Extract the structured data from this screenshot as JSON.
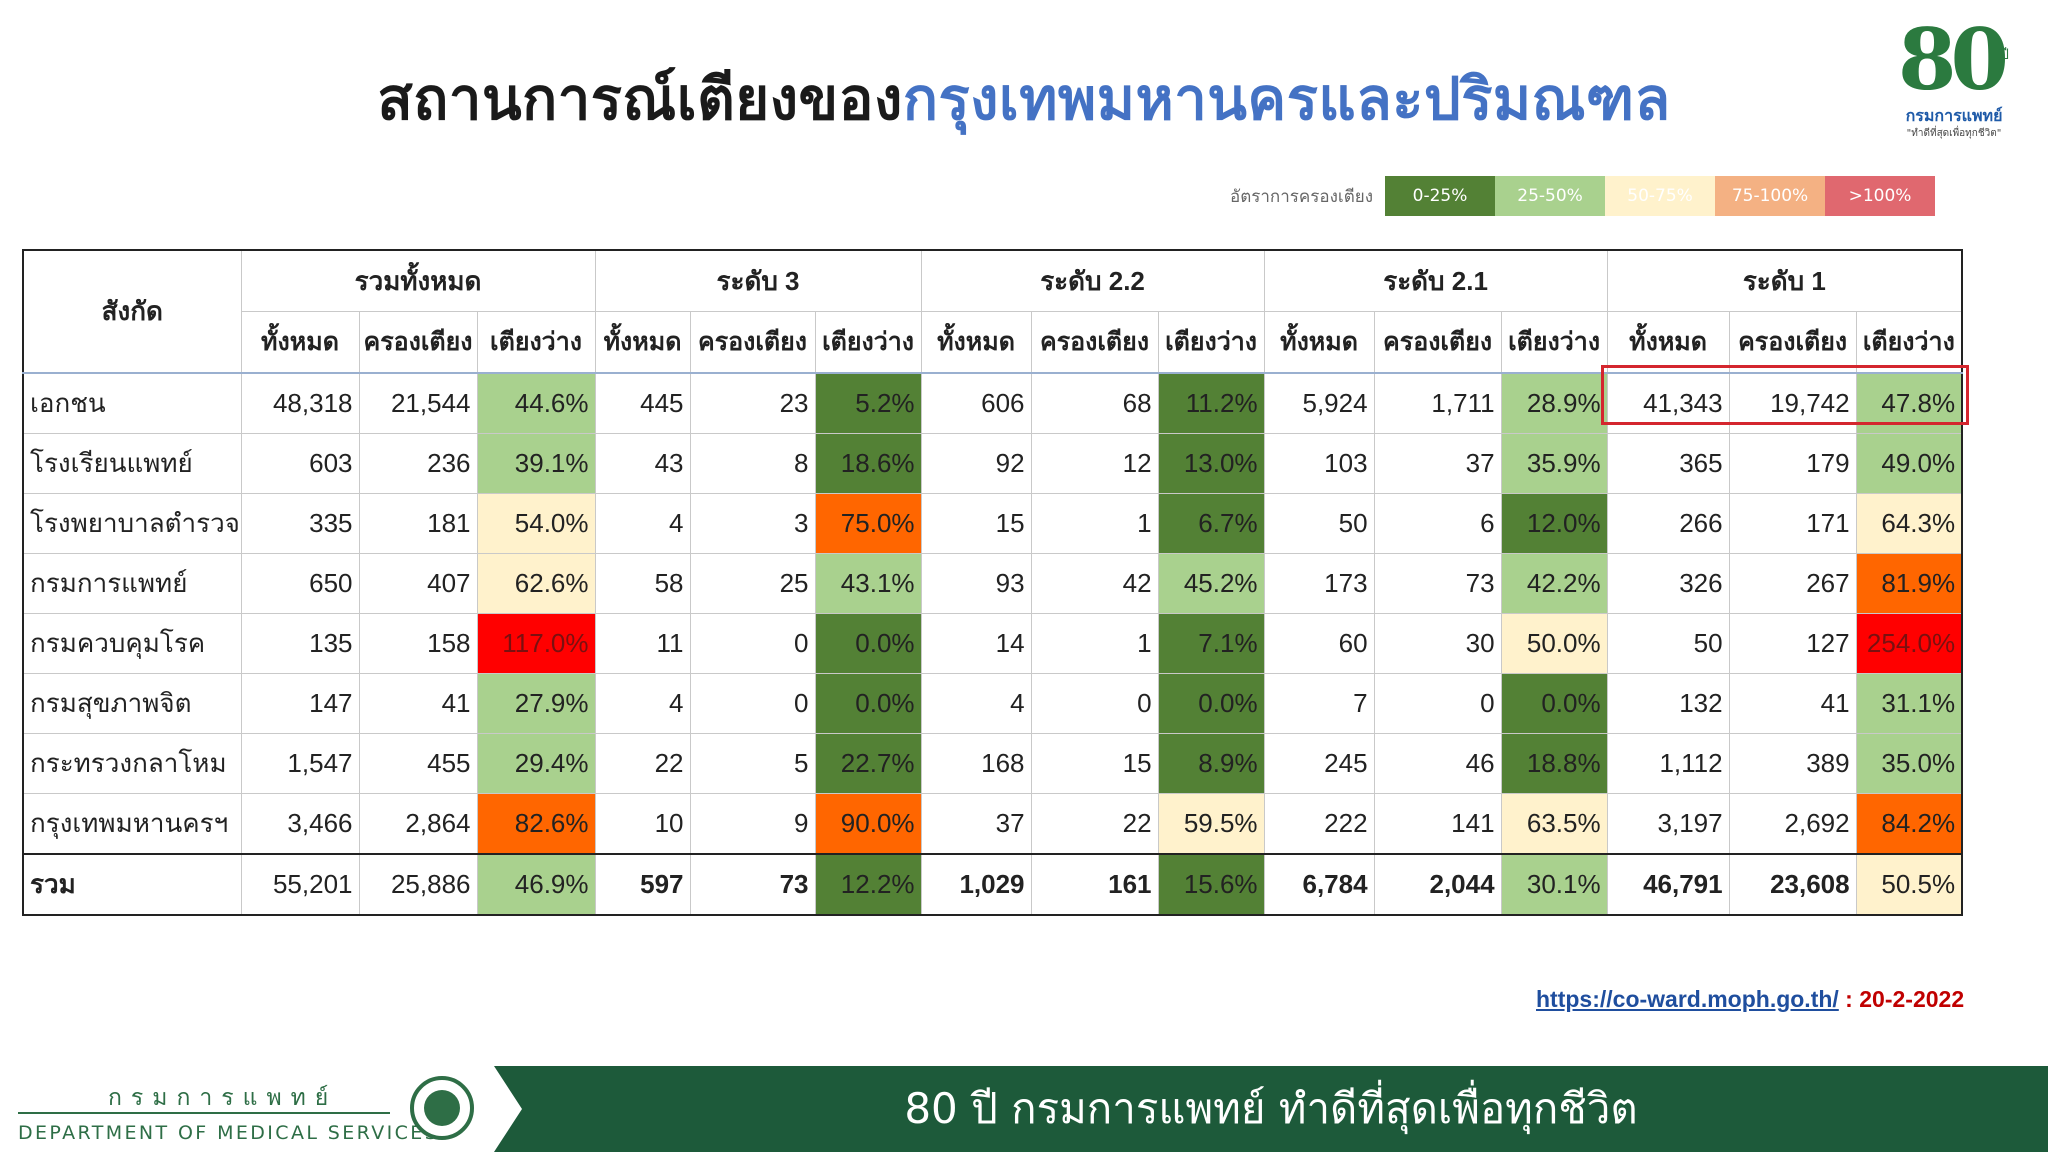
{
  "title": {
    "part1": "สถานการณ์เตียงของ",
    "part2": "กรุงเทพมหานครและปริมณฑล"
  },
  "logo": {
    "number": "80",
    "suffix": "ปี",
    "org": "กรมการแพทย์",
    "motto": "\"ทำดีที่สุดเพื่อทุกชีวิต\""
  },
  "legend": {
    "label": "อัตราการครองเตียง",
    "items": [
      {
        "text": "0-25%",
        "color": "#538135"
      },
      {
        "text": "25-50%",
        "color": "#a9d18e"
      },
      {
        "text": "50-75%",
        "color": "#fff2cc"
      },
      {
        "text": "75-100%",
        "color": "#f4b183"
      },
      {
        "text": ">100%",
        "color": "#e0686f"
      }
    ]
  },
  "table": {
    "corner": "สังกัด",
    "groups": [
      "รวมทั้งหมด",
      "ระดับ 3",
      "ระดับ 2.2",
      "ระดับ 2.1",
      "ระดับ 1"
    ],
    "sub": [
      "ทั้งหมด",
      "ครองเตียง",
      "เตียงว่าง"
    ],
    "rows": [
      {
        "name": "เอกชน",
        "cells": [
          [
            "48,318",
            "21,544",
            "44.6%",
            "c2"
          ],
          [
            "445",
            "23",
            "5.2%",
            "c1"
          ],
          [
            "606",
            "68",
            "11.2%",
            "c1"
          ],
          [
            "5,924",
            "1,711",
            "28.9%",
            "c2"
          ],
          [
            "41,343",
            "19,742",
            "47.8%",
            "c2"
          ]
        ]
      },
      {
        "name": "โรงเรียนแพทย์",
        "cells": [
          [
            "603",
            "236",
            "39.1%",
            "c2"
          ],
          [
            "43",
            "8",
            "18.6%",
            "c1"
          ],
          [
            "92",
            "12",
            "13.0%",
            "c1"
          ],
          [
            "103",
            "37",
            "35.9%",
            "c2"
          ],
          [
            "365",
            "179",
            "49.0%",
            "c2"
          ]
        ]
      },
      {
        "name": "โรงพยาบาลตำรวจ",
        "cells": [
          [
            "335",
            "181",
            "54.0%",
            "c3"
          ],
          [
            "4",
            "3",
            "75.0%",
            "c4"
          ],
          [
            "15",
            "1",
            "6.7%",
            "c1"
          ],
          [
            "50",
            "6",
            "12.0%",
            "c1"
          ],
          [
            "266",
            "171",
            "64.3%",
            "c3"
          ]
        ]
      },
      {
        "name": "กรมการแพทย์",
        "cells": [
          [
            "650",
            "407",
            "62.6%",
            "c3"
          ],
          [
            "58",
            "25",
            "43.1%",
            "c2"
          ],
          [
            "93",
            "42",
            "45.2%",
            "c2"
          ],
          [
            "173",
            "73",
            "42.2%",
            "c2"
          ],
          [
            "326",
            "267",
            "81.9%",
            "c4"
          ]
        ]
      },
      {
        "name": "กรมควบคุมโรค",
        "cells": [
          [
            "135",
            "158",
            "117.0%",
            "c5"
          ],
          [
            "11",
            "0",
            "0.0%",
            "c1"
          ],
          [
            "14",
            "1",
            "7.1%",
            "c1"
          ],
          [
            "60",
            "30",
            "50.0%",
            "c3"
          ],
          [
            "50",
            "127",
            "254.0%",
            "c5"
          ]
        ]
      },
      {
        "name": "กรมสุขภาพจิต",
        "cells": [
          [
            "147",
            "41",
            "27.9%",
            "c2"
          ],
          [
            "4",
            "0",
            "0.0%",
            "c1"
          ],
          [
            "4",
            "0",
            "0.0%",
            "c1"
          ],
          [
            "7",
            "0",
            "0.0%",
            "c1"
          ],
          [
            "132",
            "41",
            "31.1%",
            "c2"
          ]
        ]
      },
      {
        "name": "กระทรวงกลาโหม",
        "cells": [
          [
            "1,547",
            "455",
            "29.4%",
            "c2"
          ],
          [
            "22",
            "5",
            "22.7%",
            "c1"
          ],
          [
            "168",
            "15",
            "8.9%",
            "c1"
          ],
          [
            "245",
            "46",
            "18.8%",
            "c1"
          ],
          [
            "1,112",
            "389",
            "35.0%",
            "c2"
          ]
        ]
      },
      {
        "name": "กรุงเทพมหานครฯ",
        "cells": [
          [
            "3,466",
            "2,864",
            "82.6%",
            "c4"
          ],
          [
            "10",
            "9",
            "90.0%",
            "c4"
          ],
          [
            "37",
            "22",
            "59.5%",
            "c3"
          ],
          [
            "222",
            "141",
            "63.5%",
            "c3"
          ],
          [
            "3,197",
            "2,692",
            "84.2%",
            "c4"
          ]
        ]
      }
    ],
    "total": {
      "name": "รวม",
      "cells": [
        [
          "55,201",
          "25,886",
          "46.9%",
          "c2"
        ],
        [
          "597",
          "73",
          "12.2%",
          "c1"
        ],
        [
          "1,029",
          "161",
          "15.6%",
          "c1"
        ],
        [
          "6,784",
          "2,044",
          "30.1%",
          "c2"
        ],
        [
          "46,791",
          "23,608",
          "50.5%",
          "c3"
        ]
      ]
    }
  },
  "source": {
    "url": "https://co-ward.moph.go.th/",
    "sep": " : ",
    "date": "20-2-2022"
  },
  "footer": {
    "org_th": "กรมการแพทย์",
    "org_en": "DEPARTMENT OF MEDICAL SERVICES",
    "slogan": "80 ปี กรมการแพทย์ ทำดีที่สุดเพื่อทุกชีวิต"
  }
}
